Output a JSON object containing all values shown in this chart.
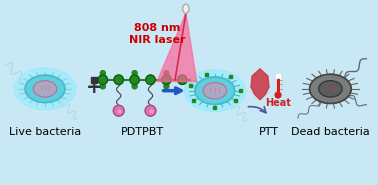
{
  "bg_color_top": "#c8e8f5",
  "bg_color_bottom": "#d8eff8",
  "title": "808 nm\nNIR laser",
  "title_color": "#cc0000",
  "label_live": "Live bacteria",
  "label_pdtpbt": "PDTPBT",
  "label_ptt": "PTT",
  "label_heat": "Heat",
  "label_dead": "Dead bacteria",
  "arrow_color": "#2255cc",
  "heat_color": "#cc2222",
  "laser_cone_color": "#ff6699",
  "polymer_backbone_color": "#228822",
  "polymer_node_color": "#228822",
  "polymer_pendant_color": "#dd66aa",
  "live_bacteria_body": "#55ccdd",
  "live_bacteria_outline": "#44bbcc",
  "dead_bacteria_body": "#888888",
  "dead_bacteria_outline": "#555555",
  "inner_cell_color": "#ddccee",
  "glow_color": "#88eeff",
  "flagella_color": "#aaddee",
  "dead_flagella_color": "#888899",
  "thermometer_red": "#cc2222",
  "thermometer_blue": "#4488cc",
  "drop_color": "#cc3344",
  "plus_color": "#333333",
  "font_size_labels": 8,
  "font_size_laser": 8,
  "font_size_heat": 7
}
